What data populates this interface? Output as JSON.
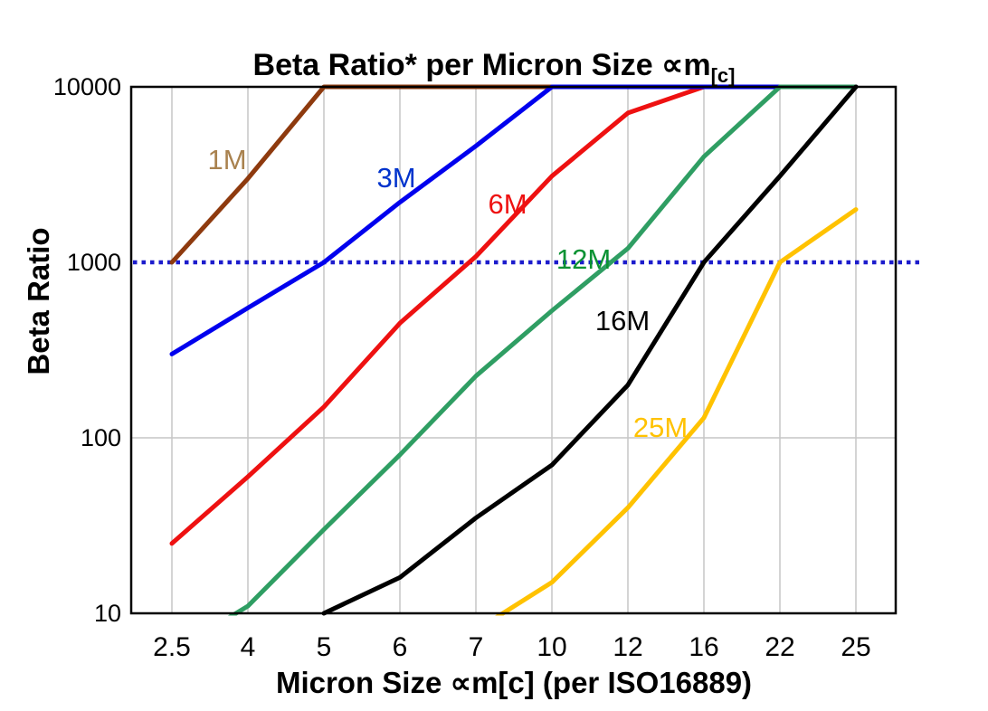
{
  "chart_data": {
    "type": "line",
    "title_main": "Beta Ratio* per Micron Size ∝m",
    "title_sub": "[c]",
    "ylabel": "Beta Ratio",
    "xlabel_pre": "Micron Size ∝m",
    "xlabel_sub": "[c]",
    "xlabel_post": " (per ISO16889)",
    "x_categories": [
      "2.5",
      "4",
      "5",
      "6",
      "7",
      "10",
      "12",
      "16",
      "22",
      "25"
    ],
    "y_scale": "log",
    "ylim": [
      10,
      10000
    ],
    "y_ticks": [
      {
        "label": "10",
        "value": 10
      },
      {
        "label": "100",
        "value": 100
      },
      {
        "label": "1000",
        "value": 1000
      },
      {
        "label": "10000",
        "value": 10000
      }
    ],
    "grid": "on",
    "gridline_color": "#c6c6c6",
    "frame_color": "#000000",
    "background_color": "#ffffff",
    "reference_line": {
      "value": 1000,
      "style": "dotted",
      "color": "#1c1ccc"
    },
    "legend_position": "inline-labels",
    "series": [
      {
        "name": "1M",
        "color": "#8e3a0e",
        "label_color": "#a9824f",
        "values": [
          1000,
          3000,
          10000,
          10000,
          10000,
          10000,
          10000,
          10000,
          10000,
          10000
        ]
      },
      {
        "name": "3M",
        "color": "#0000ee",
        "label_color": "#0033cc",
        "values": [
          300,
          550,
          1000,
          2200,
          4600,
          10000,
          10000,
          10000,
          10000,
          10000
        ]
      },
      {
        "name": "6M",
        "color": "#ee1111",
        "label_color": "#ee1111",
        "values": [
          25,
          60,
          150,
          450,
          1080,
          3100,
          7100,
          10000,
          10000,
          10000
        ]
      },
      {
        "name": "12M",
        "color": "#2f9e63",
        "label_color": "#0a9233",
        "values": [
          6,
          11,
          30,
          80,
          225,
          530,
          1200,
          4000,
          10000,
          10000
        ]
      },
      {
        "name": "16M",
        "color": "#000000",
        "label_color": "#000000",
        "values": [
          null,
          null,
          10,
          16,
          35,
          70,
          200,
          1000,
          3100,
          10000
        ]
      },
      {
        "name": "25M",
        "color": "#ffc200",
        "label_color": "#ffc200",
        "values": [
          null,
          null,
          null,
          null,
          8,
          15,
          40,
          130,
          1000,
          2000
        ]
      }
    ],
    "draw_order": [
      "6M",
      "1M",
      "3M",
      "12M",
      "16M",
      "25M"
    ]
  }
}
